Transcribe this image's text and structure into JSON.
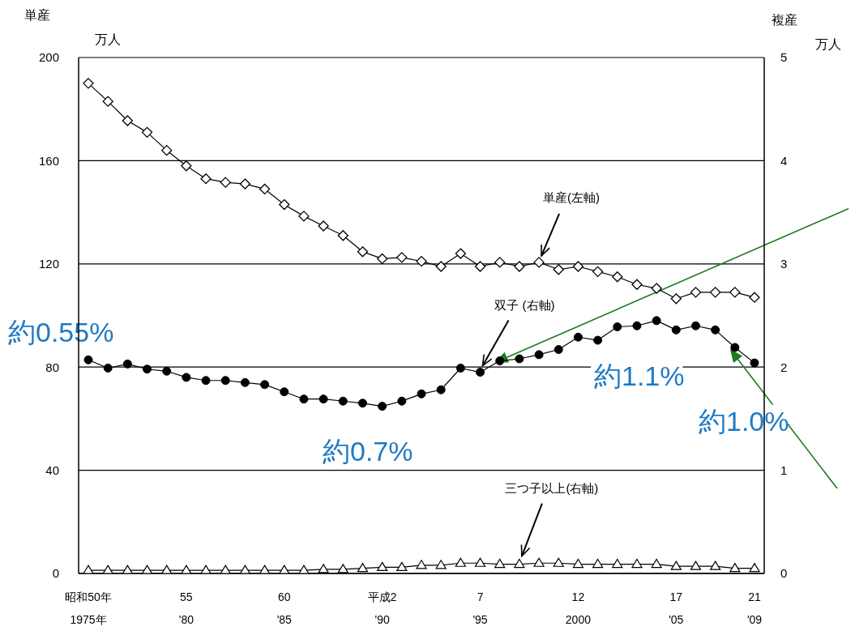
{
  "chart_data": {
    "type": "line",
    "categories": [
      "昭和50年\n1975年",
      null,
      null,
      null,
      null,
      "55\n'80",
      null,
      null,
      null,
      null,
      "60\n'85",
      null,
      null,
      null,
      null,
      "平成2\n'90",
      null,
      null,
      null,
      null,
      "7\n'95",
      null,
      null,
      null,
      null,
      "12\n2000",
      null,
      null,
      null,
      null,
      "17\n'05",
      null,
      null,
      null,
      "21\n'09"
    ],
    "series": [
      {
        "name": "単産(左軸)",
        "color": "#000000",
        "marker": "diamond",
        "values": [
          190,
          183,
          175.5,
          171,
          164,
          158,
          153,
          151.6,
          151,
          149,
          143,
          138.5,
          134.7,
          131,
          124.7,
          122,
          122.5,
          121,
          119,
          124,
          119,
          120.6,
          119,
          120.6,
          117.8,
          119,
          117,
          115,
          112,
          110.5,
          106.5,
          109,
          109,
          109,
          107
        ]
      },
      {
        "name": "双子 (右軸)",
        "color": "#000000",
        "marker": "circle",
        "axis": "y2",
        "values": [
          2.07,
          1.99,
          2.03,
          1.98,
          1.96,
          1.9,
          1.87,
          1.87,
          1.85,
          1.83,
          1.76,
          1.69,
          1.69,
          1.67,
          1.65,
          1.62,
          1.67,
          1.74,
          1.78,
          1.99,
          1.95,
          2.06,
          2.08,
          2.12,
          2.17,
          2.29,
          2.26,
          2.39,
          2.4,
          2.45,
          2.36,
          2.4,
          2.36,
          2.19,
          2.04
        ]
      },
      {
        "name": "三つ子以上(右軸)",
        "color": "#000000",
        "marker": "triangle",
        "axis": "y2",
        "values": [
          0.03,
          0.03,
          0.03,
          0.03,
          0.03,
          0.03,
          0.03,
          0.03,
          0.03,
          0.03,
          0.03,
          0.03,
          0.04,
          0.04,
          0.05,
          0.06,
          0.06,
          0.08,
          0.08,
          0.1,
          0.1,
          0.09,
          0.09,
          0.1,
          0.1,
          0.09,
          0.09,
          0.09,
          0.09,
          0.09,
          0.07,
          0.07,
          0.07,
          0.05,
          0.05
        ]
      }
    ],
    "ylabel": "単産",
    "y2label": "複産",
    "ylim": [
      0,
      200
    ],
    "yticks": [
      0,
      40,
      80,
      120,
      160,
      200
    ],
    "y2lim": [
      0,
      5
    ],
    "y2ticks": [
      0,
      1,
      2,
      3,
      4,
      5
    ],
    "grid": "y",
    "line_style": "solid",
    "annotations": [
      "万人",
      "万人",
      "約0.55%",
      "約0.7%",
      "約1.1%",
      "約1.0%"
    ]
  }
}
